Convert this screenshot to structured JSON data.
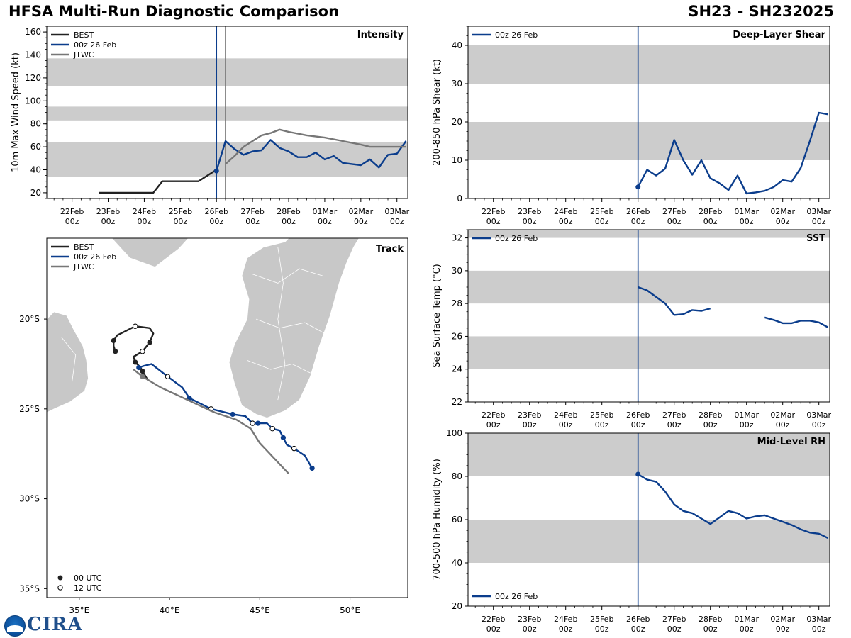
{
  "header": {
    "title": "HFSA Multi-Run Diagnostic Comparison",
    "storm_id": "SH23 - SH232025"
  },
  "colors": {
    "best": "#222222",
    "run": "#0b3d8c",
    "jtwc": "#777777",
    "band": "#cccccc",
    "land": "#c8c8c8"
  },
  "time_axis": {
    "labels": [
      "22Feb 00z",
      "23Feb 00z",
      "24Feb 00z",
      "25Feb 00z",
      "26Feb 00z",
      "27Feb 00z",
      "28Feb 00z",
      "01Mar 00z",
      "02Mar 00z",
      "03Mar 00z"
    ]
  },
  "chart_data": [
    {
      "id": "intensity",
      "type": "line",
      "title": "Intensity",
      "ylabel": "10m Max Wind Speed (kt)",
      "x_unit": "days since 22Feb 00z",
      "xlim": [
        -0.7,
        9.3
      ],
      "ylim": [
        15,
        165
      ],
      "yticks": [
        20,
        40,
        60,
        80,
        100,
        120,
        140,
        160
      ],
      "bands": [
        [
          34,
          64
        ],
        [
          83,
          95
        ],
        [
          113,
          137
        ]
      ],
      "vlines": [
        {
          "x": 4.0,
          "color": "run"
        },
        {
          "x": 4.25,
          "color": "jtwc"
        }
      ],
      "legend": [
        "BEST",
        "00z 26 Feb",
        "JTWC"
      ],
      "series": [
        {
          "name": "BEST",
          "color": "best",
          "x": [
            0.75,
            1,
            1.25,
            1.5,
            1.75,
            2,
            2.25,
            2.5,
            2.75,
            3,
            3.25,
            3.5,
            3.75,
            4
          ],
          "y": [
            20,
            20,
            20,
            20,
            20,
            20,
            20,
            30,
            30,
            30,
            30,
            30,
            35,
            40
          ]
        },
        {
          "name": "00z 26 Feb",
          "color": "run",
          "marker_first": true,
          "x": [
            4,
            4.25,
            4.5,
            4.75,
            5,
            5.25,
            5.5,
            5.75,
            6,
            6.25,
            6.5,
            6.75,
            7,
            7.25,
            7.5,
            7.75,
            8,
            8.25,
            8.5,
            8.75,
            9,
            9.25
          ],
          "y": [
            39,
            65,
            58,
            53,
            56,
            57,
            66,
            59,
            56,
            51,
            51,
            55,
            49,
            52,
            46,
            45,
            44,
            49,
            42,
            53,
            54,
            65
          ]
        },
        {
          "name": "JTWC",
          "color": "jtwc",
          "x": [
            4.25,
            4.5,
            4.75,
            5,
            5.25,
            5.5,
            5.75,
            6,
            6.5,
            7,
            7.5,
            8,
            8.25,
            8.75,
            9.25
          ],
          "y": [
            45,
            52,
            60,
            65,
            70,
            72,
            75,
            73,
            70,
            68,
            65,
            62,
            60,
            60,
            60
          ]
        }
      ]
    },
    {
      "id": "shear",
      "type": "line",
      "title": "Deep-Layer Shear",
      "ylabel": "200-850 hPa Shear (kt)",
      "x_unit": "days since 22Feb 00z",
      "xlim": [
        -0.7,
        9.3
      ],
      "ylim": [
        0,
        45
      ],
      "yticks": [
        0,
        10,
        20,
        30,
        40
      ],
      "bands": [
        [
          10,
          20
        ],
        [
          30,
          40
        ]
      ],
      "vlines": [
        {
          "x": 4.0,
          "color": "run"
        }
      ],
      "legend": [
        "00z 26 Feb"
      ],
      "series": [
        {
          "name": "00z 26 Feb",
          "color": "run",
          "marker_first": true,
          "x": [
            4,
            4.25,
            4.5,
            4.75,
            5,
            5.25,
            5.5,
            5.75,
            6,
            6.25,
            6.5,
            6.75,
            7,
            7.25,
            7.5,
            7.75,
            8,
            8.25,
            8.5,
            8.75,
            9,
            9.25
          ],
          "y": [
            3,
            7.5,
            6,
            7.8,
            15.3,
            10,
            6.2,
            10,
            5.3,
            4,
            2.2,
            6,
            1.3,
            1.6,
            2,
            3,
            4.8,
            4.4,
            8,
            15,
            22.4,
            22
          ]
        }
      ]
    },
    {
      "id": "sst",
      "type": "line",
      "title": "SST",
      "ylabel": "Sea Surface Temp (°C)",
      "x_unit": "days since 22Feb 00z",
      "xlim": [
        -0.7,
        9.3
      ],
      "ylim": [
        22,
        32.5
      ],
      "yticks": [
        22,
        24,
        26,
        28,
        30,
        32
      ],
      "bands": [
        [
          24,
          26
        ],
        [
          28,
          30
        ],
        [
          32,
          34
        ]
      ],
      "vlines": [
        {
          "x": 4.0,
          "color": "run"
        }
      ],
      "legend": [
        "00z 26 Feb"
      ],
      "series": [
        {
          "name": "00z 26 Feb",
          "color": "run",
          "x": [
            4,
            4.25,
            4.5,
            4.75,
            5,
            5.25,
            5.5,
            5.75,
            6
          ],
          "y": [
            29.0,
            28.8,
            28.4,
            28.0,
            27.3,
            27.35,
            27.6,
            27.55,
            27.7
          ]
        },
        {
          "name": "00z 26 Feb (cont.)",
          "color": "run",
          "x": [
            7.5,
            7.75,
            8,
            8.25,
            8.5,
            8.75,
            9,
            9.25
          ],
          "y": [
            27.15,
            27.0,
            26.8,
            26.8,
            26.95,
            26.95,
            26.85,
            26.55
          ]
        }
      ]
    },
    {
      "id": "rh",
      "type": "line",
      "title": "Mid-Level RH",
      "ylabel": "700-500 hPa Humidity (%)",
      "x_unit": "days since 22Feb 00z",
      "xlim": [
        -0.7,
        9.3
      ],
      "ylim": [
        20,
        100
      ],
      "yticks": [
        20,
        40,
        60,
        80,
        100
      ],
      "bands": [
        [
          40,
          60
        ],
        [
          80,
          100
        ]
      ],
      "vlines": [
        {
          "x": 4.0,
          "color": "run"
        }
      ],
      "legend": [
        "00z 26 Feb"
      ],
      "series": [
        {
          "name": "00z 26 Feb",
          "color": "run",
          "marker_first": true,
          "x": [
            4,
            4.25,
            4.5,
            4.75,
            5,
            5.25,
            5.5,
            5.75,
            6,
            6.25,
            6.5,
            6.75,
            7,
            7.25,
            7.5,
            7.75,
            8,
            8.25,
            8.5,
            8.75,
            9,
            9.25
          ],
          "y": [
            81,
            78.5,
            77.5,
            73,
            67,
            64,
            63,
            60.5,
            58,
            61,
            64,
            63,
            60.5,
            61.5,
            62,
            60.5,
            59,
            57.5,
            55.5,
            54,
            53.5,
            51.5
          ]
        }
      ]
    },
    {
      "id": "track",
      "type": "scatter",
      "title": "Track",
      "x_unit": "longitude",
      "y_unit": "latitude",
      "xlim": [
        33.2,
        53.2
      ],
      "ylim": [
        -35.5,
        -15.5
      ],
      "xticks": [
        35,
        40,
        45,
        50
      ],
      "xtick_labels": [
        "35°E",
        "40°E",
        "45°E",
        "50°E"
      ],
      "yticks": [
        -20,
        -25,
        -30,
        -35
      ],
      "ytick_labels": [
        "20°S",
        "25°S",
        "30°S",
        "35°S"
      ],
      "legend": [
        "BEST",
        "00z 26 Feb",
        "JTWC"
      ],
      "marker_legend": [
        "00 UTC",
        "12 UTC"
      ],
      "series": [
        {
          "name": "BEST",
          "color": "best",
          "lon": [
            37.0,
            36.9,
            36.9,
            37.1,
            38.1,
            38.9,
            39.1,
            38.9,
            38.5,
            38.0,
            38.1,
            38.4,
            38.5,
            38.8
          ],
          "lat": [
            -21.8,
            -21.5,
            -21.2,
            -20.9,
            -20.4,
            -20.5,
            -20.8,
            -21.3,
            -21.8,
            -22.1,
            -22.4,
            -22.7,
            -22.9,
            -23.4
          ],
          "markers": [
            {
              "i": 0,
              "utc": "00"
            },
            {
              "i": 2,
              "utc": "00"
            },
            {
              "i": 4,
              "utc": "12"
            },
            {
              "i": 7,
              "utc": "00"
            },
            {
              "i": 8,
              "utc": "12"
            },
            {
              "i": 10,
              "utc": "00"
            },
            {
              "i": 12,
              "utc": "00"
            }
          ]
        },
        {
          "name": "00z 26 Feb",
          "color": "run",
          "lon": [
            38.3,
            38.6,
            39.0,
            39.9,
            40.7,
            41.1,
            42.3,
            43.5,
            44.2,
            44.6,
            44.9,
            45.2,
            45.4,
            45.7,
            46.1,
            46.3,
            46.5,
            46.9,
            47.5,
            47.9
          ],
          "lat": [
            -22.7,
            -22.6,
            -22.5,
            -23.2,
            -23.8,
            -24.4,
            -25.0,
            -25.3,
            -25.4,
            -25.8,
            -25.8,
            -25.8,
            -25.8,
            -26.1,
            -26.2,
            -26.6,
            -27.0,
            -27.2,
            -27.6,
            -28.3
          ],
          "markers": [
            {
              "i": 0,
              "utc": "00"
            },
            {
              "i": 3,
              "utc": "12"
            },
            {
              "i": 5,
              "utc": "00"
            },
            {
              "i": 6,
              "utc": "12"
            },
            {
              "i": 7,
              "utc": "00"
            },
            {
              "i": 9,
              "utc": "12"
            },
            {
              "i": 10,
              "utc": "00"
            },
            {
              "i": 13,
              "utc": "12"
            },
            {
              "i": 15,
              "utc": "00"
            },
            {
              "i": 17,
              "utc": "12"
            },
            {
              "i": 19,
              "utc": "00"
            }
          ]
        },
        {
          "name": "JTWC",
          "color": "jtwc",
          "lon": [
            38.0,
            38.5,
            39.5,
            41.0,
            42.5,
            43.7,
            44.5,
            45.0,
            46.6
          ],
          "lat": [
            -22.8,
            -23.2,
            -23.8,
            -24.5,
            -25.2,
            -25.6,
            -26.1,
            -26.9,
            -28.6
          ]
        }
      ]
    }
  ]
}
